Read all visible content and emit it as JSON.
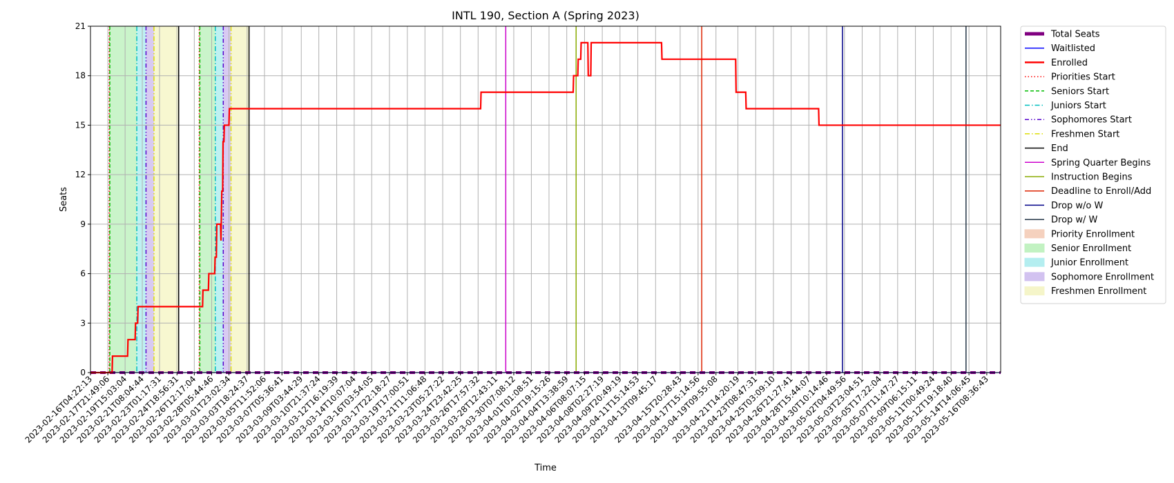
{
  "chart_data": {
    "type": "line",
    "title": "INTL 190, Section A (Spring 2023)",
    "xlabel": "Time",
    "ylabel": "Seats",
    "ylim": [
      0,
      21
    ],
    "yticks": [
      0,
      3,
      6,
      9,
      12,
      15,
      18,
      21
    ],
    "xlim": [
      "2023-02-16T04:22:13",
      "2023-05-17T17:45:00"
    ],
    "grid": true,
    "legend_position": "outside-right",
    "xticks": [
      "2023-02-16T04:22:13",
      "2023-02-17T21:49:06",
      "2023-02-19T15:03:04",
      "2023-02-21T08:04:44",
      "2023-02-23T01:17:31",
      "2023-02-24T18:56:31",
      "2023-02-26T12:17:04",
      "2023-02-28T05:44:46",
      "2023-03-01T23:02:34",
      "2023-03-03T18:24:37",
      "2023-03-05T11:52:06",
      "2023-03-07T05:36:41",
      "2023-03-09T03:44:29",
      "2023-03-10T21:37:24",
      "2023-03-12T16:19:39",
      "2023-03-14T10:07:04",
      "2023-03-16T03:54:05",
      "2023-03-17T22:18:27",
      "2023-03-19T17:00:51",
      "2023-03-21T11:06:48",
      "2023-03-23T05:27:22",
      "2023-03-24T23:42:25",
      "2023-03-26T17:57:32",
      "2023-03-28T12:43:11",
      "2023-03-30T07:08:12",
      "2023-04-01T01:08:51",
      "2023-04-02T19:15:26",
      "2023-04-04T13:38:59",
      "2023-04-06T08:07:15",
      "2023-04-08T02:27:19",
      "2023-04-09T20:49:19",
      "2023-04-11T15:14:53",
      "2023-04-13T09:45:17",
      "2023-04-15T20:28:43",
      "2023-04-17T15:14:56",
      "2023-04-19T09:55:08",
      "2023-04-21T14:20:19",
      "2023-04-23T08:47:31",
      "2023-04-25T03:09:10",
      "2023-04-26T21:27:41",
      "2023-04-28T15:44:07",
      "2023-04-30T10:14:46",
      "2023-05-02T04:49:56",
      "2023-05-03T23:04:51",
      "2023-05-05T17:22:04",
      "2023-05-07T11:47:27",
      "2023-05-09T06:15:11",
      "2023-05-11T00:49:24",
      "2023-05-12T19:18:40",
      "2023-05-14T14:06:45",
      "2023-05-16T08:36:43"
    ],
    "series": [
      {
        "name": "Total Seats",
        "color": "#800080",
        "style": "dashed-thick",
        "points": [
          [
            "2023-02-16T04:22:13",
            0
          ],
          [
            "2023-05-17T17:45:00",
            0
          ]
        ]
      },
      {
        "name": "Waitlisted",
        "color": "#0000ff",
        "style": "solid",
        "points": [
          [
            "2023-02-16T04:22:13",
            0
          ],
          [
            "2023-05-17T17:45:00",
            0
          ]
        ]
      },
      {
        "name": "Enrolled",
        "color": "#ff0000",
        "style": "step",
        "points": [
          [
            "2023-02-16T04:22:13",
            0
          ],
          [
            "2023-02-18T08:00:00",
            0
          ],
          [
            "2023-02-18T09:00:00",
            1
          ],
          [
            "2023-02-19T21:00:00",
            1
          ],
          [
            "2023-02-19T22:00:00",
            2
          ],
          [
            "2023-02-20T15:00:00",
            2
          ],
          [
            "2023-02-20T16:00:00",
            3
          ],
          [
            "2023-02-20T21:00:00",
            3
          ],
          [
            "2023-02-20T22:00:00",
            4
          ],
          [
            "2023-02-27T08:00:00",
            4
          ],
          [
            "2023-02-27T09:00:00",
            5
          ],
          [
            "2023-02-27T22:00:00",
            5
          ],
          [
            "2023-02-27T23:00:00",
            6
          ],
          [
            "2023-02-28T13:00:00",
            6
          ],
          [
            "2023-02-28T14:00:00",
            7
          ],
          [
            "2023-02-28T17:00:00",
            7
          ],
          [
            "2023-02-28T18:00:00",
            9
          ],
          [
            "2023-03-01T03:00:00",
            9
          ],
          [
            "2023-03-01T04:00:00",
            8
          ],
          [
            "2023-03-01T06:00:00",
            11
          ],
          [
            "2023-03-01T08:00:00",
            11
          ],
          [
            "2023-03-01T09:00:00",
            14
          ],
          [
            "2023-03-01T11:00:00",
            14
          ],
          [
            "2023-03-01T12:00:00",
            15
          ],
          [
            "2023-03-01T23:00:00",
            15
          ],
          [
            "2023-03-02T00:00:00",
            16
          ],
          [
            "2023-03-27T00:00:00",
            16
          ],
          [
            "2023-03-27T01:00:00",
            17
          ],
          [
            "2023-04-05T05:00:00",
            17
          ],
          [
            "2023-04-05T06:00:00",
            18
          ],
          [
            "2023-04-05T16:00:00",
            18
          ],
          [
            "2023-04-05T17:00:00",
            19
          ],
          [
            "2023-04-05T23:00:00",
            19
          ],
          [
            "2023-04-06T00:00:00",
            20
          ],
          [
            "2023-04-06T16:00:00",
            20
          ],
          [
            "2023-04-06T17:00:00",
            18
          ],
          [
            "2023-04-06T23:00:00",
            18
          ],
          [
            "2023-04-07T00:00:00",
            20
          ],
          [
            "2023-04-14T00:00:00",
            20
          ],
          [
            "2023-04-14T01:00:00",
            19
          ],
          [
            "2023-04-21T09:00:00",
            19
          ],
          [
            "2023-04-21T10:00:00",
            17
          ],
          [
            "2023-04-22T09:00:00",
            17
          ],
          [
            "2023-04-22T10:00:00",
            16
          ],
          [
            "2023-04-29T15:00:00",
            16
          ],
          [
            "2023-04-29T16:00:00",
            15
          ],
          [
            "2023-05-17T17:45:00",
            15
          ]
        ]
      }
    ],
    "event_lines": [
      {
        "name": "Priorities Start",
        "color": "#ff0000",
        "style": "dotted",
        "at": [
          "2023-02-18T01:00:00",
          "2023-02-27T00:00:00"
        ]
      },
      {
        "name": "Seniors Start",
        "color": "#00bb00",
        "style": "dashed",
        "at": [
          "2023-02-18T02:30:00",
          "2023-02-27T01:30:00"
        ]
      },
      {
        "name": "Juniors Start",
        "color": "#00bfbf",
        "style": "dashdot",
        "at": [
          "2023-02-20T19:00:00",
          "2023-02-28T14:30:00"
        ]
      },
      {
        "name": "Sophomores Start",
        "color": "#5500cc",
        "style": "dashdotdot",
        "at": [
          "2023-02-21T17:00:00",
          "2023-03-01T09:30:00"
        ]
      },
      {
        "name": "Freshmen Start",
        "color": "#dddd00",
        "style": "dashdot",
        "at": [
          "2023-02-22T12:00:00",
          "2023-03-02T04:00:00"
        ]
      },
      {
        "name": "End",
        "color": "#000000",
        "style": "solid",
        "at": [
          "2023-02-24T23:00:00",
          "2023-03-03T23:00:00"
        ]
      },
      {
        "name": "Spring Quarter Begins",
        "color": "#cc00cc",
        "style": "solid",
        "at": [
          "2023-03-29T12:00:00"
        ]
      },
      {
        "name": "Instruction Begins",
        "color": "#88aa00",
        "style": "solid",
        "at": [
          "2023-04-05T12:00:00"
        ]
      },
      {
        "name": "Deadline to Enroll/Add",
        "color": "#dd2200",
        "style": "solid",
        "at": [
          "2023-04-18T00:00:00"
        ]
      },
      {
        "name": "Drop w/o W",
        "color": "#000088",
        "style": "solid",
        "at": [
          "2023-05-02T00:00:00"
        ]
      },
      {
        "name": "Drop w/ W",
        "color": "#223344",
        "style": "solid",
        "at": [
          "2023-05-14T07:00:00"
        ]
      }
    ],
    "periods": [
      {
        "name": "Priority Enrollment",
        "color": "#f4c9b3",
        "ranges": [
          [
            "2023-02-18T01:00:00",
            "2023-02-18T02:30:00"
          ],
          [
            "2023-02-27T00:00:00",
            "2023-02-27T01:30:00"
          ]
        ]
      },
      {
        "name": "Senior Enrollment",
        "color": "#b8f0b8",
        "ranges": [
          [
            "2023-02-18T02:30:00",
            "2023-02-20T19:00:00"
          ],
          [
            "2023-02-27T01:30:00",
            "2023-02-28T14:30:00"
          ]
        ]
      },
      {
        "name": "Junior Enrollment",
        "color": "#a8ecee",
        "ranges": [
          [
            "2023-02-20T19:00:00",
            "2023-02-21T17:00:00"
          ],
          [
            "2023-02-28T14:30:00",
            "2023-03-01T09:30:00"
          ]
        ]
      },
      {
        "name": "Sophomore Enrollment",
        "color": "#cbb8ee",
        "ranges": [
          [
            "2023-02-21T17:00:00",
            "2023-02-22T12:00:00"
          ],
          [
            "2023-03-01T09:30:00",
            "2023-03-02T04:00:00"
          ]
        ]
      },
      {
        "name": "Freshmen Enrollment",
        "color": "#f4f4c0",
        "ranges": [
          [
            "2023-02-22T12:00:00",
            "2023-02-24T23:00:00"
          ],
          [
            "2023-03-02T04:00:00",
            "2023-03-03T23:00:00"
          ]
        ]
      }
    ],
    "legend": [
      {
        "label": "Total Seats",
        "kind": "line",
        "color": "#800080",
        "style": "thick"
      },
      {
        "label": "Waitlisted",
        "kind": "line",
        "color": "#0000ff",
        "style": "solid"
      },
      {
        "label": "Enrolled",
        "kind": "line",
        "color": "#ff0000",
        "style": "bold"
      },
      {
        "label": "Priorities Start",
        "kind": "line",
        "color": "#ff0000",
        "style": "dotted"
      },
      {
        "label": "Seniors Start",
        "kind": "line",
        "color": "#00bb00",
        "style": "dashed"
      },
      {
        "label": "Juniors Start",
        "kind": "line",
        "color": "#00bfbf",
        "style": "dashdot"
      },
      {
        "label": "Sophomores Start",
        "kind": "line",
        "color": "#5500cc",
        "style": "dashdotdot"
      },
      {
        "label": "Freshmen Start",
        "kind": "line",
        "color": "#dddd00",
        "style": "dashdot"
      },
      {
        "label": "End",
        "kind": "line",
        "color": "#000000",
        "style": "solid"
      },
      {
        "label": "Spring Quarter Begins",
        "kind": "line",
        "color": "#cc00cc",
        "style": "solid"
      },
      {
        "label": "Instruction Begins",
        "kind": "line",
        "color": "#88aa00",
        "style": "solid"
      },
      {
        "label": "Deadline to Enroll/Add",
        "kind": "line",
        "color": "#dd2200",
        "style": "solid"
      },
      {
        "label": "Drop w/o W",
        "kind": "line",
        "color": "#000088",
        "style": "solid"
      },
      {
        "label": "Drop w/ W",
        "kind": "line",
        "color": "#223344",
        "style": "solid"
      },
      {
        "label": "Priority Enrollment",
        "kind": "patch",
        "color": "#f4c9b3"
      },
      {
        "label": "Senior Enrollment",
        "kind": "patch",
        "color": "#b8f0b8"
      },
      {
        "label": "Junior Enrollment",
        "kind": "patch",
        "color": "#a8ecee"
      },
      {
        "label": "Sophomore Enrollment",
        "kind": "patch",
        "color": "#cbb8ee"
      },
      {
        "label": "Freshmen Enrollment",
        "kind": "patch",
        "color": "#f4f4c0"
      }
    ]
  }
}
